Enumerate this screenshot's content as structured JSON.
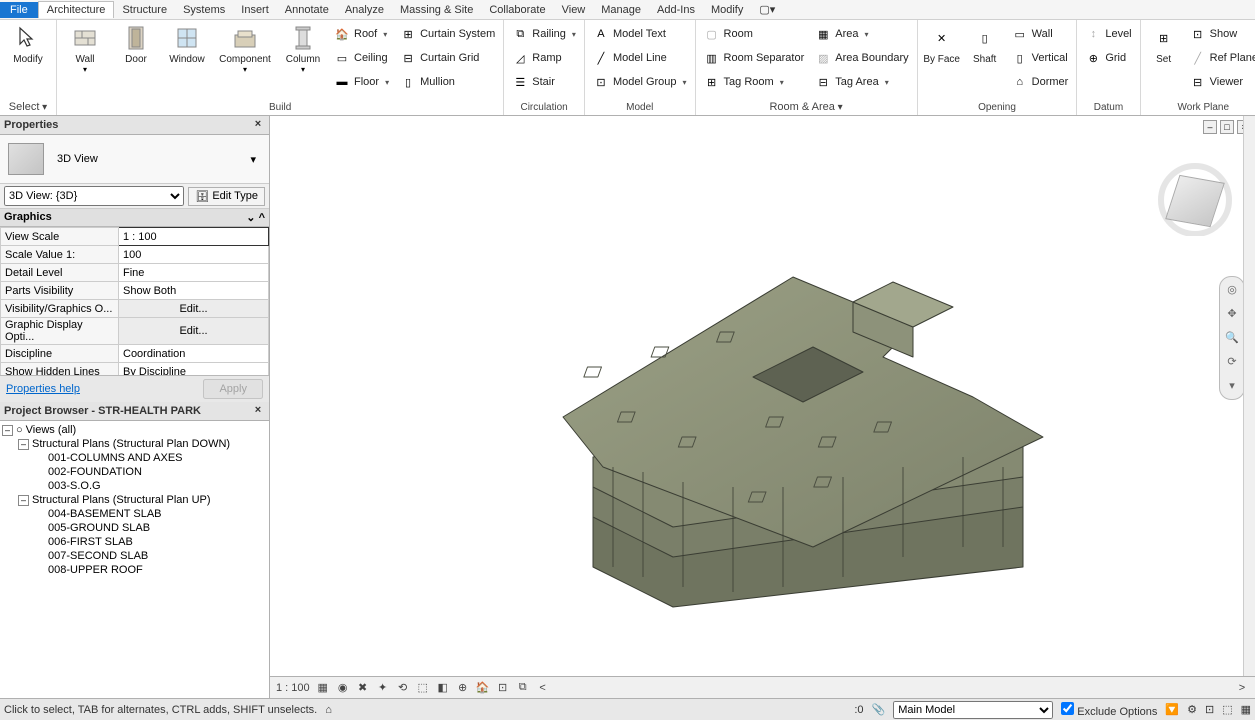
{
  "menu": {
    "file": "File",
    "architecture": "Architecture",
    "structure": "Structure",
    "systems": "Systems",
    "insert": "Insert",
    "annotate": "Annotate",
    "analyze": "Analyze",
    "massing": "Massing & Site",
    "collaborate": "Collaborate",
    "view": "View",
    "manage": "Manage",
    "addins": "Add-Ins",
    "modify": "Modify"
  },
  "ribbon": {
    "select": {
      "modify": "Modify",
      "label": "Select"
    },
    "build": {
      "wall": "Wall",
      "door": "Door",
      "window": "Window",
      "component": "Component",
      "column": "Column",
      "roof": "Roof",
      "ceiling": "Ceiling",
      "floor": "Floor",
      "curtain_system": "Curtain System",
      "curtain_grid": "Curtain Grid",
      "mullion": "Mullion",
      "label": "Build"
    },
    "circulation": {
      "railing": "Railing",
      "ramp": "Ramp",
      "stair": "Stair",
      "label": "Circulation"
    },
    "model": {
      "model_text": "Model Text",
      "model_line": "Model Line",
      "model_group": "Model Group",
      "label": "Model"
    },
    "room_area": {
      "room": "Room",
      "room_sep": "Room Separator",
      "tag_room": "Tag Room",
      "area": "Area",
      "area_boundary": "Area Boundary",
      "tag_area": "Tag Area",
      "label": "Room & Area"
    },
    "opening": {
      "by_face": "By Face",
      "shaft": "Shaft",
      "wall": "Wall",
      "vertical": "Vertical",
      "dormer": "Dormer",
      "label": "Opening"
    },
    "datum": {
      "level": "Level",
      "grid": "Grid",
      "label": "Datum"
    },
    "workplane": {
      "set": "Set",
      "show": "Show",
      "ref_plane": "Ref Plane",
      "viewer": "Viewer",
      "label": "Work Plane"
    }
  },
  "properties": {
    "title": "Properties",
    "type_name": "3D View",
    "instance_selector": "3D View: {3D}",
    "edit_type": "Edit Type",
    "section": "Graphics",
    "rows": [
      {
        "label": "View Scale",
        "value": "1 : 100",
        "boxed": true
      },
      {
        "label": "Scale Value   1:",
        "value": "100"
      },
      {
        "label": "Detail Level",
        "value": "Fine"
      },
      {
        "label": "Parts Visibility",
        "value": "Show Both"
      },
      {
        "label": "Visibility/Graphics O...",
        "value": "Edit...",
        "btn": true
      },
      {
        "label": "Graphic Display Opti...",
        "value": "Edit...",
        "btn": true
      },
      {
        "label": "Discipline",
        "value": "Coordination"
      },
      {
        "label": "Show Hidden Lines",
        "value": "By Discipline"
      },
      {
        "label": "Default Analysis Disp...",
        "value": "None"
      }
    ],
    "help": "Properties help",
    "apply": "Apply"
  },
  "browser": {
    "title": "Project Browser - STR-HEALTH PARK",
    "root": "Views (all)",
    "groups": [
      {
        "label": "Structural Plans (Structural Plan DOWN)",
        "items": [
          "001-COLUMNS AND AXES",
          "002-FOUNDATION",
          "003-S.O.G"
        ]
      },
      {
        "label": "Structural Plans (Structural Plan UP)",
        "items": [
          "004-BASEMENT  SLAB",
          "005-GROUND SLAB",
          "006-FIRST SLAB",
          "007-SECOND SLAB",
          "008-UPPER ROOF"
        ]
      }
    ]
  },
  "viewport": {
    "scale": "1 : 100"
  },
  "status": {
    "hint": "Click to select, TAB for alternates, CTRL adds, SHIFT unselects.",
    "workset": "Main Model",
    "exclude": "Exclude Options"
  },
  "colors": {
    "accent": "#1976d2",
    "panel_bg": "#f0f0f0",
    "border": "#b0b0b0",
    "building_fill": "#8a8f75",
    "building_stroke": "#3a3d33"
  }
}
